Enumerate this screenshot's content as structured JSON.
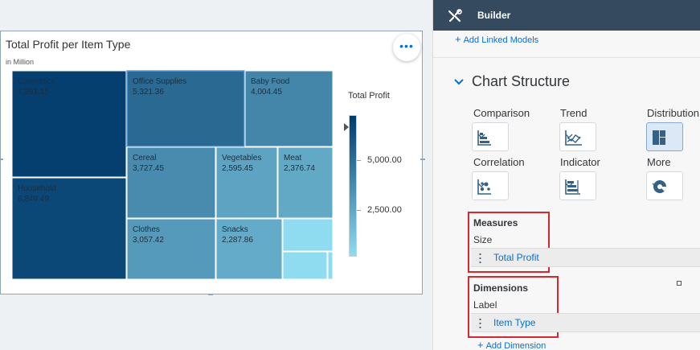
{
  "chart": {
    "title": "Total Profit per Item Type",
    "subtitle": "in Million",
    "more_label": "•••",
    "legend_title": "Total Profit",
    "legend_ticks": [
      "5,000.00",
      "2,500.00"
    ],
    "color_low": "#8fdcf0",
    "color_high": "#003a6c"
  },
  "chart_data": {
    "type": "treemap",
    "title": "Total Profit per Item Type",
    "subtitle": "in Million",
    "legend": "Total Profit",
    "items": [
      {
        "label": "Cosmetics",
        "value_text": "7,261.15",
        "value": 7261.15
      },
      {
        "label": "Household",
        "value_text": "6,849.49",
        "value": 6849.49
      },
      {
        "label": "Office Supplies",
        "value_text": "5,321.36",
        "value": 5321.36
      },
      {
        "label": "Baby Food",
        "value_text": "4,004.45",
        "value": 4004.45
      },
      {
        "label": "Cereal",
        "value_text": "3,727.45",
        "value": 3727.45
      },
      {
        "label": "Clothes",
        "value_text": "3,057.42",
        "value": 3057.42
      },
      {
        "label": "Vegetables",
        "value_text": "2,595.45",
        "value": 2595.45
      },
      {
        "label": "Meat",
        "value_text": "2,376.74",
        "value": 2376.74
      },
      {
        "label": "Snacks",
        "value_text": "2,287.86",
        "value": 2287.86
      }
    ]
  },
  "builder": {
    "title": "Builder",
    "add_linked_models": "Add Linked Models",
    "section_title": "Chart Structure",
    "categories": [
      {
        "label": "Comparison",
        "icon": "bar-chart-icon"
      },
      {
        "label": "Trend",
        "icon": "area-chart-icon"
      },
      {
        "label": "Distribution",
        "icon": "treemap-icon"
      },
      {
        "label": "Correlation",
        "icon": "scatter-chart-icon"
      },
      {
        "label": "Indicator",
        "icon": "bullet-chart-icon"
      },
      {
        "label": "More",
        "icon": "donut-chart-icon"
      }
    ],
    "measures": {
      "title": "Measures",
      "sub": "Size",
      "token": "Total Profit"
    },
    "dimensions": {
      "title": "Dimensions",
      "sub": "Label",
      "token": "Item Type"
    },
    "add_dimension": "Add Dimension",
    "highlight_color": "#d8272e",
    "header_color": "#354a5f"
  }
}
